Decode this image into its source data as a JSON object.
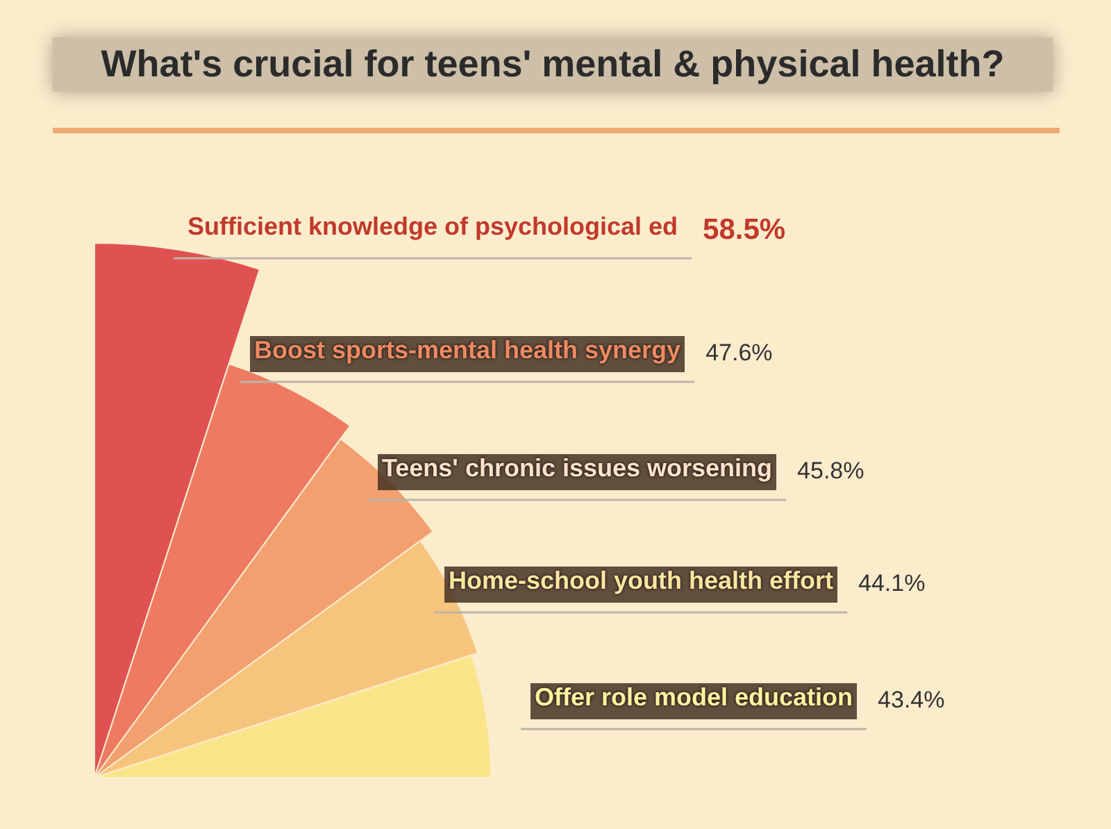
{
  "chart_data": {
    "type": "other",
    "title": "What's crucial for teens' mental & physical health?",
    "categories": [
      "Sufficient knowledge of psychological ed",
      "Boost sports-mental health synergy",
      "Teens' chronic issues worsening",
      "Home-school youth health effort",
      "Offer role model education"
    ],
    "values": [
      58.5,
      47.6,
      45.8,
      44.1,
      43.4
    ],
    "colors": [
      "#e05252",
      "#ee7a62",
      "#f2a070",
      "#f7c47e",
      "#fbe58a"
    ],
    "value_labels": [
      "58.5%",
      "47.6%",
      "45.8%",
      "44.1%",
      "43.4%"
    ]
  }
}
